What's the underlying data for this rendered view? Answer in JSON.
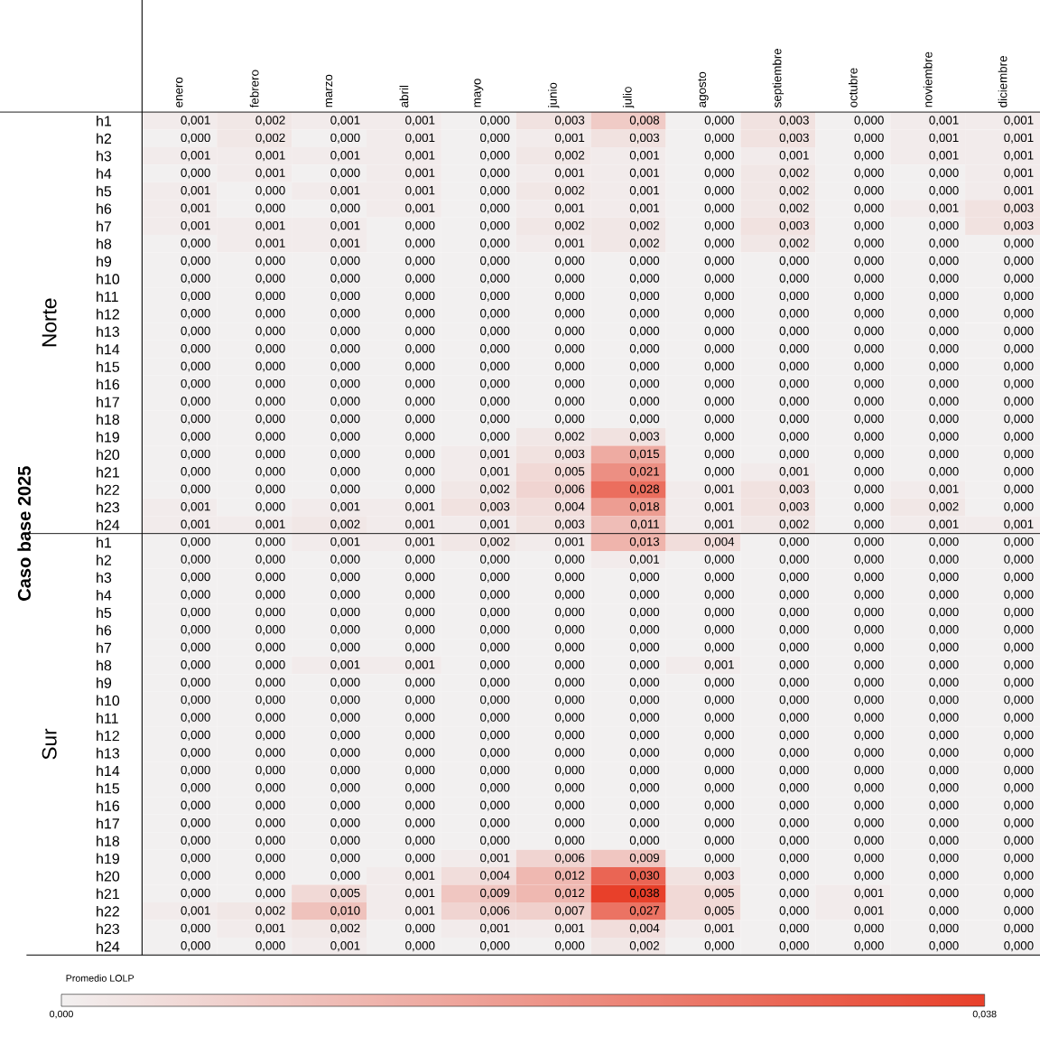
{
  "chart_data": {
    "type": "heatmap",
    "ylabel": "Caso base 2025",
    "annotations": [
      "Norte",
      "Sur"
    ],
    "clabel": "Promedio LOLP",
    "categories": [
      "enero",
      "febrero",
      "marzo",
      "abril",
      "mayo",
      "junio",
      "julio",
      "agosto",
      "septiembre",
      "octubre",
      "noviembre",
      "diciembre"
    ],
    "y_categories": [
      "h1",
      "h2",
      "h3",
      "h4",
      "h5",
      "h6",
      "h7",
      "h8",
      "h9",
      "h10",
      "h11",
      "h12",
      "h13",
      "h14",
      "h15",
      "h16",
      "h17",
      "h18",
      "h19",
      "h20",
      "h21",
      "h22",
      "h23",
      "h24",
      "h1",
      "h2",
      "h3",
      "h4",
      "h5",
      "h6",
      "h7",
      "h8",
      "h9",
      "h10",
      "h11",
      "h12",
      "h13",
      "h14",
      "h15",
      "h16",
      "h17",
      "h18",
      "h19",
      "h20",
      "h21",
      "h22",
      "h23",
      "h24"
    ],
    "cells": [
      [
        0.001,
        0.002,
        0.001,
        0.001,
        0,
        0.003,
        0.008,
        0,
        0.003,
        0,
        0.001,
        0.001
      ],
      [
        0,
        0.002,
        0,
        0.001,
        0,
        0.001,
        0.003,
        0,
        0.003,
        0,
        0.001,
        0.001
      ],
      [
        0.001,
        0.001,
        0.001,
        0.001,
        0,
        0.002,
        0.001,
        0,
        0.001,
        0,
        0.001,
        0.001
      ],
      [
        0,
        0.001,
        0,
        0.001,
        0,
        0.001,
        0.001,
        0,
        0.002,
        0,
        0,
        0.001
      ],
      [
        0.001,
        0,
        0.001,
        0.001,
        0,
        0.002,
        0.001,
        0,
        0.002,
        0,
        0,
        0.001
      ],
      [
        0.001,
        0,
        0,
        0.001,
        0,
        0.001,
        0.001,
        0,
        0.002,
        0,
        0.001,
        0.003
      ],
      [
        0.001,
        0.001,
        0.001,
        0,
        0,
        0.002,
        0.002,
        0,
        0.003,
        0,
        0,
        0.003
      ],
      [
        0,
        0.001,
        0.001,
        0,
        0,
        0.001,
        0.002,
        0,
        0.002,
        0,
        0,
        0
      ],
      [
        0,
        0,
        0,
        0,
        0,
        0,
        0,
        0,
        0,
        0,
        0,
        0
      ],
      [
        0,
        0,
        0,
        0,
        0,
        0,
        0,
        0,
        0,
        0,
        0,
        0
      ],
      [
        0,
        0,
        0,
        0,
        0,
        0,
        0,
        0,
        0,
        0,
        0,
        0
      ],
      [
        0,
        0,
        0,
        0,
        0,
        0,
        0,
        0,
        0,
        0,
        0,
        0
      ],
      [
        0,
        0,
        0,
        0,
        0,
        0,
        0,
        0,
        0,
        0,
        0,
        0
      ],
      [
        0,
        0,
        0,
        0,
        0,
        0,
        0,
        0,
        0,
        0,
        0,
        0
      ],
      [
        0,
        0,
        0,
        0,
        0,
        0,
        0,
        0,
        0,
        0,
        0,
        0
      ],
      [
        0,
        0,
        0,
        0,
        0,
        0,
        0,
        0,
        0,
        0,
        0,
        0
      ],
      [
        0,
        0,
        0,
        0,
        0,
        0,
        0,
        0,
        0,
        0,
        0,
        0
      ],
      [
        0,
        0,
        0,
        0,
        0,
        0,
        0,
        0,
        0,
        0,
        0,
        0
      ],
      [
        0,
        0,
        0,
        0,
        0,
        0.002,
        0.003,
        0,
        0,
        0,
        0,
        0
      ],
      [
        0,
        0,
        0,
        0,
        0.001,
        0.003,
        0.015,
        0,
        0,
        0,
        0,
        0
      ],
      [
        0,
        0,
        0,
        0,
        0.001,
        0.005,
        0.021,
        0,
        0.001,
        0,
        0,
        0
      ],
      [
        0,
        0,
        0,
        0,
        0.002,
        0.006,
        0.028,
        0.001,
        0.003,
        0,
        0.001,
        0
      ],
      [
        0.001,
        0,
        0.001,
        0.001,
        0.003,
        0.004,
        0.018,
        0.001,
        0.003,
        0,
        0.002,
        0
      ],
      [
        0.001,
        0.001,
        0.002,
        0.001,
        0.001,
        0.003,
        0.011,
        0.001,
        0.002,
        0,
        0.001,
        0.001
      ],
      [
        0,
        0,
        0.001,
        0.001,
        0.002,
        0.001,
        0.013,
        0.004,
        0,
        0,
        0,
        0
      ],
      [
        0,
        0,
        0,
        0,
        0,
        0,
        0.001,
        0,
        0,
        0,
        0,
        0
      ],
      [
        0,
        0,
        0,
        0,
        0,
        0,
        0,
        0,
        0,
        0,
        0,
        0
      ],
      [
        0,
        0,
        0,
        0,
        0,
        0,
        0,
        0,
        0,
        0,
        0,
        0
      ],
      [
        0,
        0,
        0,
        0,
        0,
        0,
        0,
        0,
        0,
        0,
        0,
        0
      ],
      [
        0,
        0,
        0,
        0,
        0,
        0,
        0,
        0,
        0,
        0,
        0,
        0
      ],
      [
        0,
        0,
        0,
        0,
        0,
        0,
        0,
        0,
        0,
        0,
        0,
        0
      ],
      [
        0,
        0,
        0.001,
        0.001,
        0,
        0,
        0,
        0.001,
        0,
        0,
        0,
        0
      ],
      [
        0,
        0,
        0,
        0,
        0,
        0,
        0,
        0,
        0,
        0,
        0,
        0
      ],
      [
        0,
        0,
        0,
        0,
        0,
        0,
        0,
        0,
        0,
        0,
        0,
        0
      ],
      [
        0,
        0,
        0,
        0,
        0,
        0,
        0,
        0,
        0,
        0,
        0,
        0
      ],
      [
        0,
        0,
        0,
        0,
        0,
        0,
        0,
        0,
        0,
        0,
        0,
        0
      ],
      [
        0,
        0,
        0,
        0,
        0,
        0,
        0,
        0,
        0,
        0,
        0,
        0
      ],
      [
        0,
        0,
        0,
        0,
        0,
        0,
        0,
        0,
        0,
        0,
        0,
        0
      ],
      [
        0,
        0,
        0,
        0,
        0,
        0,
        0,
        0,
        0,
        0,
        0,
        0
      ],
      [
        0,
        0,
        0,
        0,
        0,
        0,
        0,
        0,
        0,
        0,
        0,
        0
      ],
      [
        0,
        0,
        0,
        0,
        0,
        0,
        0,
        0,
        0,
        0,
        0,
        0
      ],
      [
        0,
        0,
        0,
        0,
        0,
        0,
        0,
        0,
        0,
        0,
        0,
        0
      ],
      [
        0,
        0,
        0,
        0,
        0.001,
        0.006,
        0.009,
        0,
        0,
        0,
        0,
        0
      ],
      [
        0,
        0,
        0,
        0.001,
        0.004,
        0.012,
        0.03,
        0.003,
        0,
        0,
        0,
        0
      ],
      [
        0,
        0,
        0.005,
        0.001,
        0.009,
        0.012,
        0.038,
        0.005,
        0,
        0.001,
        0,
        0
      ],
      [
        0.001,
        0.002,
        0.01,
        0.001,
        0.006,
        0.007,
        0.027,
        0.005,
        0,
        0.001,
        0,
        0
      ],
      [
        0,
        0.001,
        0.002,
        0,
        0.001,
        0.001,
        0.004,
        0.001,
        0,
        0,
        0,
        0
      ],
      [
        0,
        0,
        0.001,
        0,
        0,
        0,
        0.002,
        0,
        0,
        0,
        0,
        0
      ]
    ],
    "cell_labels": [
      [
        "0,001",
        "0,002",
        "0,001",
        "0,001",
        "0,000",
        "0,003",
        "0,008",
        "0,000",
        "0,003",
        "0,000",
        "0,001",
        "0,001"
      ],
      [
        "0,000",
        "0,002",
        "0,000",
        "0,001",
        "0,000",
        "0,001",
        "0,003",
        "0,000",
        "0,003",
        "0,000",
        "0,001",
        "0,001"
      ],
      [
        "0,001",
        "0,001",
        "0,001",
        "0,001",
        "0,000",
        "0,002",
        "0,001",
        "0,000",
        "0,001",
        "0,000",
        "0,001",
        "0,001"
      ],
      [
        "0,000",
        "0,001",
        "0,000",
        "0,001",
        "0,000",
        "0,001",
        "0,001",
        "0,000",
        "0,002",
        "0,000",
        "0,000",
        "0,001"
      ],
      [
        "0,001",
        "0,000",
        "0,001",
        "0,001",
        "0,000",
        "0,002",
        "0,001",
        "0,000",
        "0,002",
        "0,000",
        "0,000",
        "0,001"
      ],
      [
        "0,001",
        "0,000",
        "0,000",
        "0,001",
        "0,000",
        "0,001",
        "0,001",
        "0,000",
        "0,002",
        "0,000",
        "0,001",
        "0,003"
      ],
      [
        "0,001",
        "0,001",
        "0,001",
        "0,000",
        "0,000",
        "0,002",
        "0,002",
        "0,000",
        "0,003",
        "0,000",
        "0,000",
        "0,003"
      ],
      [
        "0,000",
        "0,001",
        "0,001",
        "0,000",
        "0,000",
        "0,001",
        "0,002",
        "0,000",
        "0,002",
        "0,000",
        "0,000",
        "0,000"
      ],
      [
        "0,000",
        "0,000",
        "0,000",
        "0,000",
        "0,000",
        "0,000",
        "0,000",
        "0,000",
        "0,000",
        "0,000",
        "0,000",
        "0,000"
      ],
      [
        "0,000",
        "0,000",
        "0,000",
        "0,000",
        "0,000",
        "0,000",
        "0,000",
        "0,000",
        "0,000",
        "0,000",
        "0,000",
        "0,000"
      ],
      [
        "0,000",
        "0,000",
        "0,000",
        "0,000",
        "0,000",
        "0,000",
        "0,000",
        "0,000",
        "0,000",
        "0,000",
        "0,000",
        "0,000"
      ],
      [
        "0,000",
        "0,000",
        "0,000",
        "0,000",
        "0,000",
        "0,000",
        "0,000",
        "0,000",
        "0,000",
        "0,000",
        "0,000",
        "0,000"
      ],
      [
        "0,000",
        "0,000",
        "0,000",
        "0,000",
        "0,000",
        "0,000",
        "0,000",
        "0,000",
        "0,000",
        "0,000",
        "0,000",
        "0,000"
      ],
      [
        "0,000",
        "0,000",
        "0,000",
        "0,000",
        "0,000",
        "0,000",
        "0,000",
        "0,000",
        "0,000",
        "0,000",
        "0,000",
        "0,000"
      ],
      [
        "0,000",
        "0,000",
        "0,000",
        "0,000",
        "0,000",
        "0,000",
        "0,000",
        "0,000",
        "0,000",
        "0,000",
        "0,000",
        "0,000"
      ],
      [
        "0,000",
        "0,000",
        "0,000",
        "0,000",
        "0,000",
        "0,000",
        "0,000",
        "0,000",
        "0,000",
        "0,000",
        "0,000",
        "0,000"
      ],
      [
        "0,000",
        "0,000",
        "0,000",
        "0,000",
        "0,000",
        "0,000",
        "0,000",
        "0,000",
        "0,000",
        "0,000",
        "0,000",
        "0,000"
      ],
      [
        "0,000",
        "0,000",
        "0,000",
        "0,000",
        "0,000",
        "0,000",
        "0,000",
        "0,000",
        "0,000",
        "0,000",
        "0,000",
        "0,000"
      ],
      [
        "0,000",
        "0,000",
        "0,000",
        "0,000",
        "0,000",
        "0,002",
        "0,003",
        "0,000",
        "0,000",
        "0,000",
        "0,000",
        "0,000"
      ],
      [
        "0,000",
        "0,000",
        "0,000",
        "0,000",
        "0,001",
        "0,003",
        "0,015",
        "0,000",
        "0,000",
        "0,000",
        "0,000",
        "0,000"
      ],
      [
        "0,000",
        "0,000",
        "0,000",
        "0,000",
        "0,001",
        "0,005",
        "0,021",
        "0,000",
        "0,001",
        "0,000",
        "0,000",
        "0,000"
      ],
      [
        "0,000",
        "0,000",
        "0,000",
        "0,000",
        "0,002",
        "0,006",
        "0,028",
        "0,001",
        "0,003",
        "0,000",
        "0,001",
        "0,000"
      ],
      [
        "0,001",
        "0,000",
        "0,001",
        "0,001",
        "0,003",
        "0,004",
        "0,018",
        "0,001",
        "0,003",
        "0,000",
        "0,002",
        "0,000"
      ],
      [
        "0,001",
        "0,001",
        "0,002",
        "0,001",
        "0,001",
        "0,003",
        "0,011",
        "0,001",
        "0,002",
        "0,000",
        "0,001",
        "0,001"
      ],
      [
        "0,000",
        "0,000",
        "0,001",
        "0,001",
        "0,002",
        "0,001",
        "0,013",
        "0,004",
        "0,000",
        "0,000",
        "0,000",
        "0,000"
      ],
      [
        "0,000",
        "0,000",
        "0,000",
        "0,000",
        "0,000",
        "0,000",
        "0,001",
        "0,000",
        "0,000",
        "0,000",
        "0,000",
        "0,000"
      ],
      [
        "0,000",
        "0,000",
        "0,000",
        "0,000",
        "0,000",
        "0,000",
        "0,000",
        "0,000",
        "0,000",
        "0,000",
        "0,000",
        "0,000"
      ],
      [
        "0,000",
        "0,000",
        "0,000",
        "0,000",
        "0,000",
        "0,000",
        "0,000",
        "0,000",
        "0,000",
        "0,000",
        "0,000",
        "0,000"
      ],
      [
        "0,000",
        "0,000",
        "0,000",
        "0,000",
        "0,000",
        "0,000",
        "0,000",
        "0,000",
        "0,000",
        "0,000",
        "0,000",
        "0,000"
      ],
      [
        "0,000",
        "0,000",
        "0,000",
        "0,000",
        "0,000",
        "0,000",
        "0,000",
        "0,000",
        "0,000",
        "0,000",
        "0,000",
        "0,000"
      ],
      [
        "0,000",
        "0,000",
        "0,000",
        "0,000",
        "0,000",
        "0,000",
        "0,000",
        "0,000",
        "0,000",
        "0,000",
        "0,000",
        "0,000"
      ],
      [
        "0,000",
        "0,000",
        "0,001",
        "0,001",
        "0,000",
        "0,000",
        "0,000",
        "0,001",
        "0,000",
        "0,000",
        "0,000",
        "0,000"
      ],
      [
        "0,000",
        "0,000",
        "0,000",
        "0,000",
        "0,000",
        "0,000",
        "0,000",
        "0,000",
        "0,000",
        "0,000",
        "0,000",
        "0,000"
      ],
      [
        "0,000",
        "0,000",
        "0,000",
        "0,000",
        "0,000",
        "0,000",
        "0,000",
        "0,000",
        "0,000",
        "0,000",
        "0,000",
        "0,000"
      ],
      [
        "0,000",
        "0,000",
        "0,000",
        "0,000",
        "0,000",
        "0,000",
        "0,000",
        "0,000",
        "0,000",
        "0,000",
        "0,000",
        "0,000"
      ],
      [
        "0,000",
        "0,000",
        "0,000",
        "0,000",
        "0,000",
        "0,000",
        "0,000",
        "0,000",
        "0,000",
        "0,000",
        "0,000",
        "0,000"
      ],
      [
        "0,000",
        "0,000",
        "0,000",
        "0,000",
        "0,000",
        "0,000",
        "0,000",
        "0,000",
        "0,000",
        "0,000",
        "0,000",
        "0,000"
      ],
      [
        "0,000",
        "0,000",
        "0,000",
        "0,000",
        "0,000",
        "0,000",
        "0,000",
        "0,000",
        "0,000",
        "0,000",
        "0,000",
        "0,000"
      ],
      [
        "0,000",
        "0,000",
        "0,000",
        "0,000",
        "0,000",
        "0,000",
        "0,000",
        "0,000",
        "0,000",
        "0,000",
        "0,000",
        "0,000"
      ],
      [
        "0,000",
        "0,000",
        "0,000",
        "0,000",
        "0,000",
        "0,000",
        "0,000",
        "0,000",
        "0,000",
        "0,000",
        "0,000",
        "0,000"
      ],
      [
        "0,000",
        "0,000",
        "0,000",
        "0,000",
        "0,000",
        "0,000",
        "0,000",
        "0,000",
        "0,000",
        "0,000",
        "0,000",
        "0,000"
      ],
      [
        "0,000",
        "0,000",
        "0,000",
        "0,000",
        "0,000",
        "0,000",
        "0,000",
        "0,000",
        "0,000",
        "0,000",
        "0,000",
        "0,000"
      ],
      [
        "0,000",
        "0,000",
        "0,000",
        "0,000",
        "0,001",
        "0,006",
        "0,009",
        "0,000",
        "0,000",
        "0,000",
        "0,000",
        "0,000"
      ],
      [
        "0,000",
        "0,000",
        "0,000",
        "0,001",
        "0,004",
        "0,012",
        "0,030",
        "0,003",
        "0,000",
        "0,000",
        "0,000",
        "0,000"
      ],
      [
        "0,000",
        "0,000",
        "0,005",
        "0,001",
        "0,009",
        "0,012",
        "0,038",
        "0,005",
        "0,000",
        "0,001",
        "0,000",
        "0,000"
      ],
      [
        "0,001",
        "0,002",
        "0,010",
        "0,001",
        "0,006",
        "0,007",
        "0,027",
        "0,005",
        "0,000",
        "0,001",
        "0,000",
        "0,000"
      ],
      [
        "0,000",
        "0,001",
        "0,002",
        "0,000",
        "0,001",
        "0,001",
        "0,004",
        "0,001",
        "0,000",
        "0,000",
        "0,000",
        "0,000"
      ],
      [
        "0,000",
        "0,000",
        "0,001",
        "0,000",
        "0,000",
        "0,000",
        "0,002",
        "0,000",
        "0,000",
        "0,000",
        "0,000",
        "0,000"
      ]
    ],
    "clim": [
      0,
      0.038
    ],
    "cticks": [
      {
        "value": 0,
        "label": "0,000"
      },
      {
        "value": 0.038,
        "label": "0,038"
      }
    ]
  }
}
